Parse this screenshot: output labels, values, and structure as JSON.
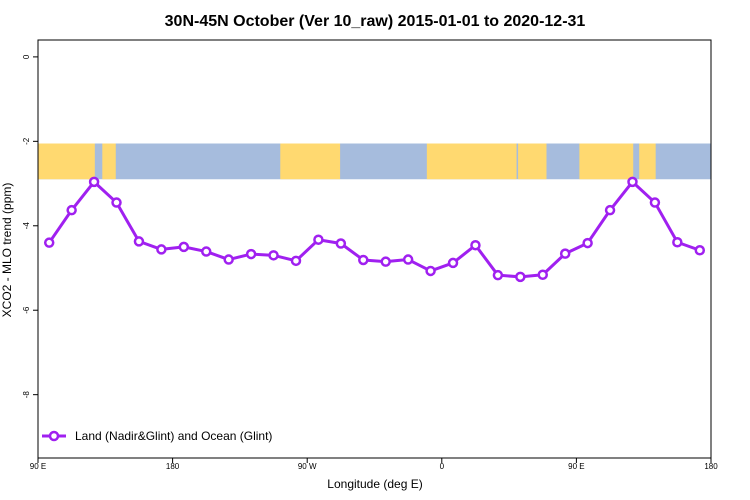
{
  "chart_data": {
    "type": "line",
    "title": "30N-45N October (Ver 10_raw)   2015-01-01 to 2020-12-31",
    "xlabel": "Longitude (deg E)",
    "ylabel": "XCO2 - MLO trend (ppm)",
    "x_ticks": [
      {
        "value": 90,
        "label": "90 E"
      },
      {
        "value": 180,
        "label": "180"
      },
      {
        "value": 270,
        "label": "90 W"
      },
      {
        "value": 360,
        "label": "0"
      },
      {
        "value": 450,
        "label": "90 E"
      },
      {
        "value": 540,
        "label": "180"
      }
    ],
    "y_ticks": [
      {
        "value": 0,
        "label": "0"
      },
      {
        "value": -2,
        "label": "-2"
      },
      {
        "value": -4,
        "label": "-4"
      },
      {
        "value": -6,
        "label": "-6"
      },
      {
        "value": -8,
        "label": "-8"
      }
    ],
    "xlim": [
      90,
      540
    ],
    "ylim": [
      -9.5,
      0.4
    ],
    "map_band": {
      "ymin": -2.9,
      "ymax": -2.05,
      "land_color": "#FFD970",
      "ocean_color": "#A6BCDD"
    },
    "series": [
      {
        "name": "Land (Nadir&Glint) and Ocean (Glint)",
        "color": "#A020F0",
        "x": [
          97.5,
          112.5,
          127.5,
          142.5,
          157.5,
          172.5,
          187.5,
          202.5,
          217.5,
          232.5,
          247.5,
          262.5,
          277.5,
          292.5,
          307.5,
          322.5,
          337.5,
          352.5,
          367.5,
          382.5,
          397.5,
          412.5,
          427.5,
          442.5,
          457.5,
          472.5,
          487.5,
          502.5,
          517.5,
          532.5
        ],
        "y": [
          -4.4,
          -3.63,
          -2.96,
          -3.45,
          -4.37,
          -4.56,
          -4.5,
          -4.61,
          -4.8,
          -4.67,
          -4.7,
          -4.83,
          -4.33,
          -4.42,
          -4.81,
          -4.85,
          -4.8,
          -5.07,
          -4.88,
          -4.46,
          -5.17,
          -5.21,
          -5.16,
          -4.66,
          -4.41,
          -3.63,
          -2.96,
          -3.45,
          -4.39,
          -4.58
        ]
      }
    ],
    "legend": {
      "position": "bottom-left"
    }
  }
}
